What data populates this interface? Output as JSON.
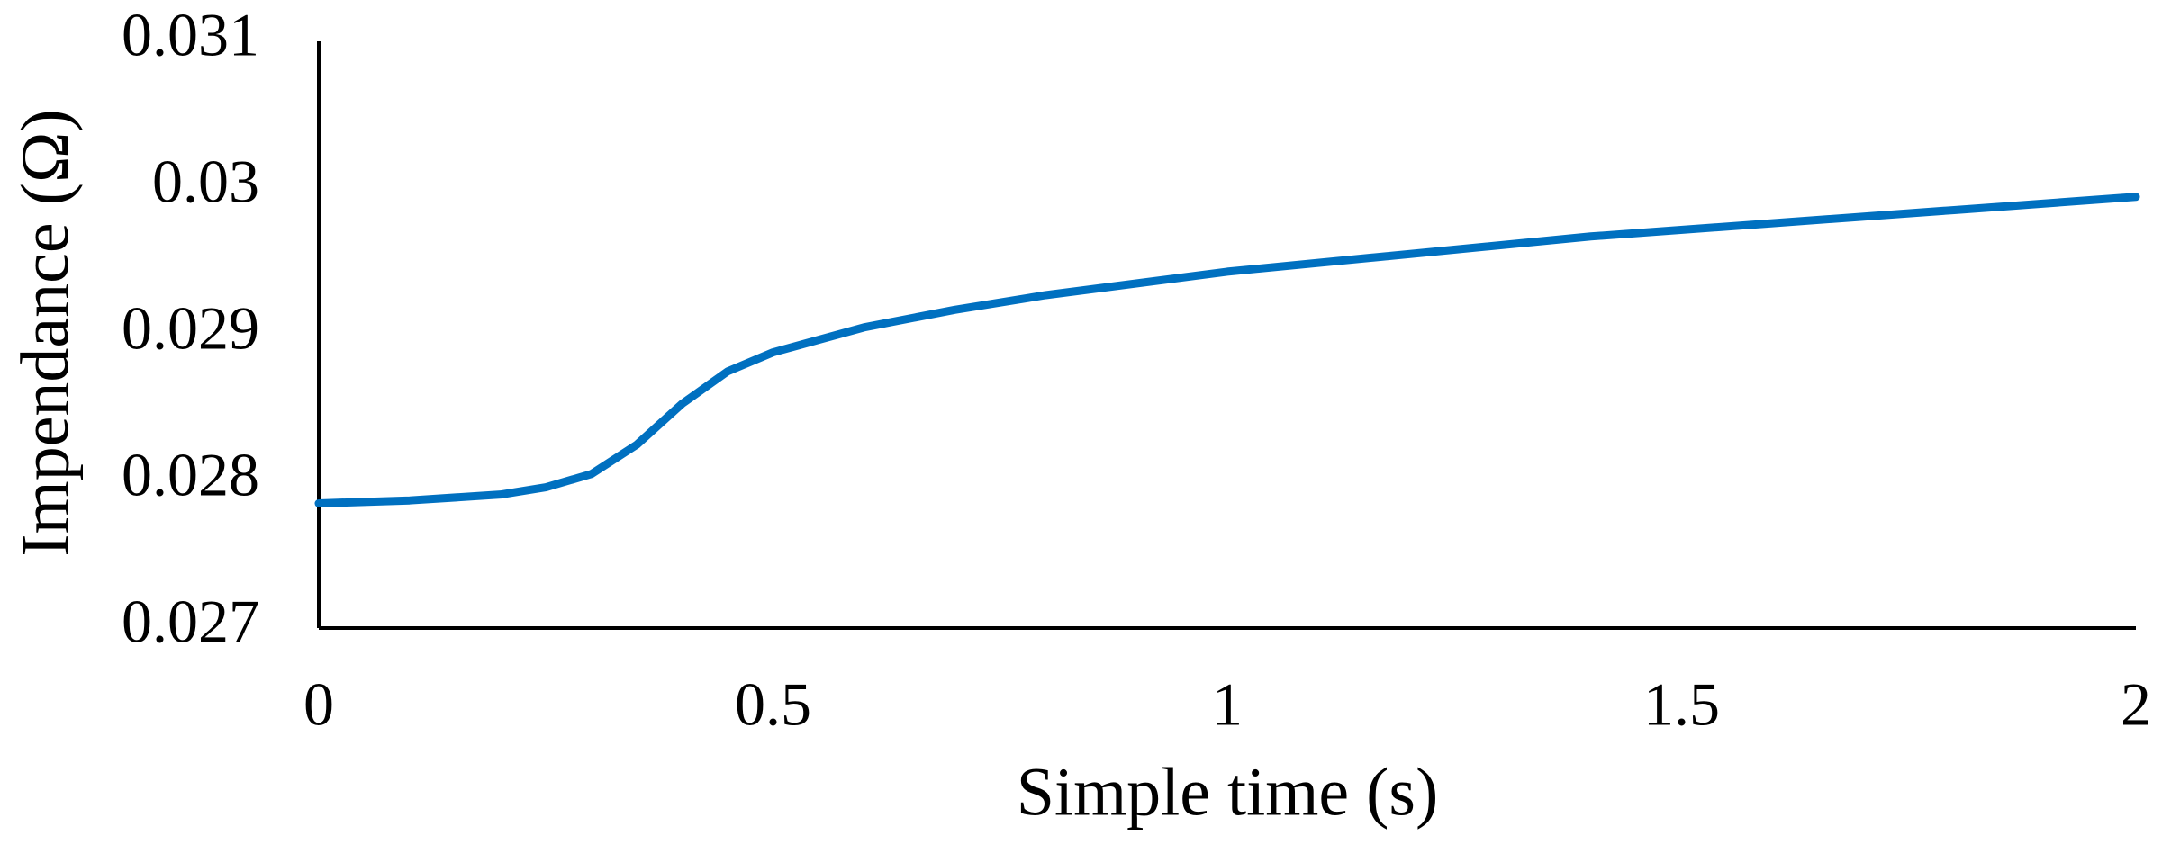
{
  "chart_data": {
    "type": "line",
    "x_label": "Simple time (s)",
    "y_label": "Impendance (Ω)",
    "x": [
      0,
      0.1,
      0.2,
      0.25,
      0.3,
      0.35,
      0.4,
      0.45,
      0.5,
      0.6,
      0.7,
      0.8,
      1.0,
      1.2,
      1.4,
      1.6,
      1.8,
      2.0
    ],
    "series": [
      {
        "color": "#0070c0",
        "values": [
          0.02785,
          0.02787,
          0.02791,
          0.02796,
          0.02805,
          0.02825,
          0.02853,
          0.02875,
          0.02888,
          0.02905,
          0.02917,
          0.02927,
          0.02943,
          0.02955,
          0.02967,
          0.02976,
          0.02985,
          0.02994
        ]
      }
    ],
    "xlim": [
      0,
      2
    ],
    "xticks": [
      0,
      0.5,
      1,
      1.5,
      2
    ],
    "ylim": [
      0.027,
      0.031
    ],
    "yticks": [
      0.027,
      0.028,
      0.029,
      0.03,
      0.031
    ],
    "grid": false
  }
}
